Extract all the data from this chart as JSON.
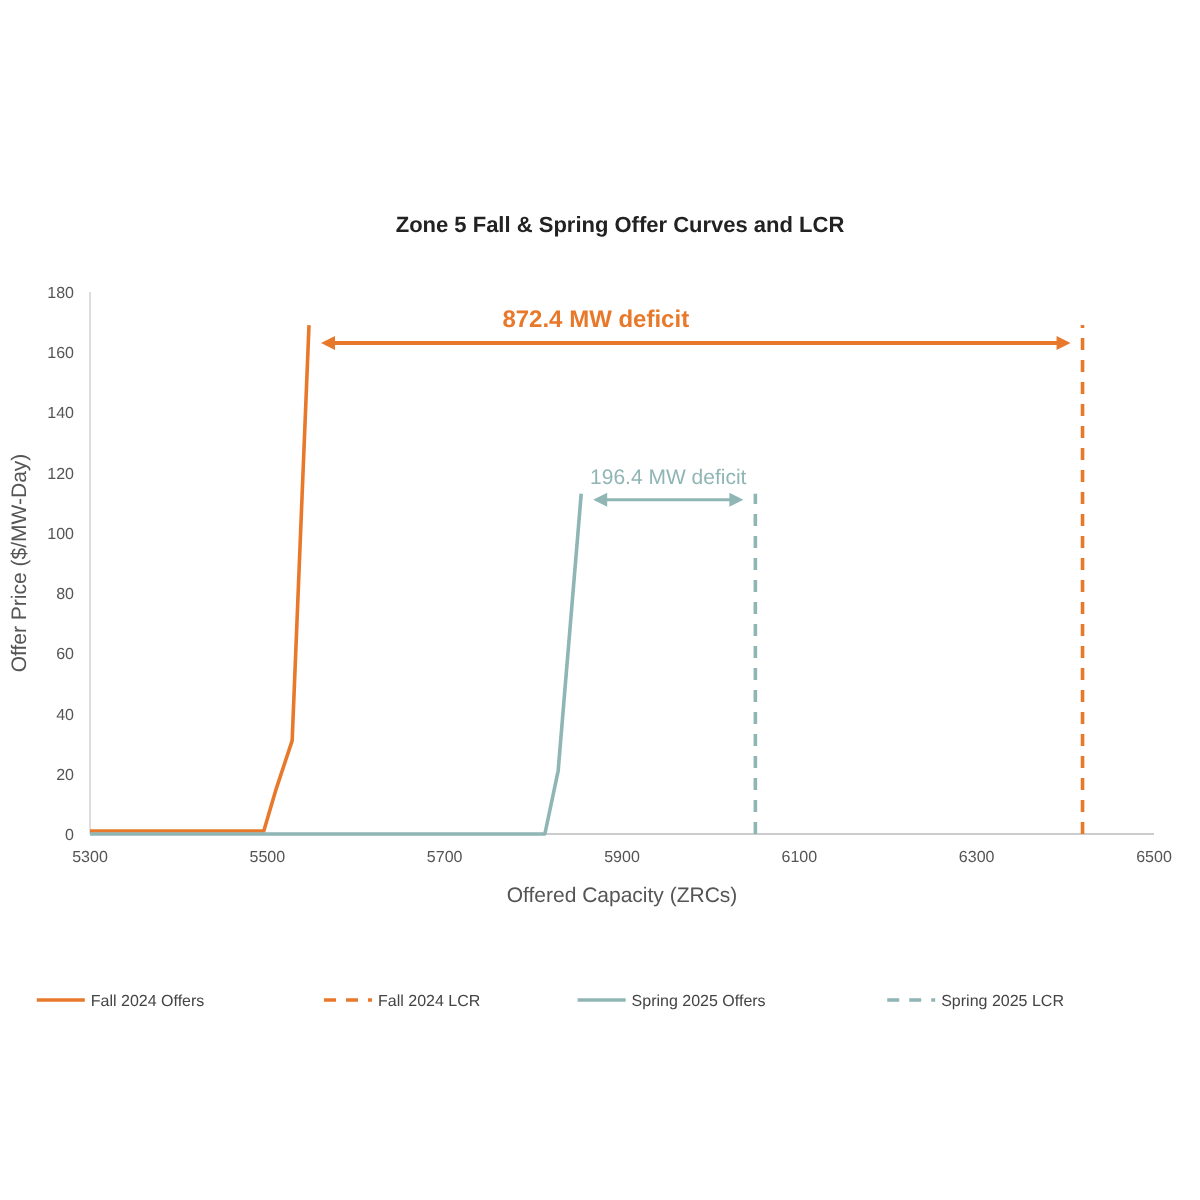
{
  "chart_data": {
    "type": "line",
    "title": "Zone 5 Fall & Spring Offer Curves and LCR",
    "xlabel": "Offered Capacity (ZRCs)",
    "ylabel": "Offer Price ($/MW-Day)",
    "xlim": [
      5300,
      6500
    ],
    "xticks": [
      5300,
      5500,
      5700,
      5900,
      6100,
      6300,
      6500
    ],
    "ylim": [
      0,
      180
    ],
    "yticks": [
      0,
      20,
      40,
      60,
      80,
      100,
      120,
      140,
      160,
      180
    ],
    "grid": false,
    "legend": "bottom",
    "series": [
      {
        "name": "Fall 2024 Offers",
        "color": "#e8792b",
        "line_style": "solid",
        "x": [
          5300,
          5496,
          5510,
          5528,
          5547
        ],
        "values": [
          1,
          1,
          15,
          31,
          169
        ]
      },
      {
        "name": "Fall 2024 LCR",
        "color": "#e8792b",
        "line_style": "dashed",
        "x": [
          6419.4,
          6419.4
        ],
        "values": [
          0,
          169
        ]
      },
      {
        "name": "Spring 2025 Offers",
        "color": "#8fb5b5",
        "line_style": "solid",
        "x": [
          5300,
          5813,
          5828,
          5854
        ],
        "values": [
          0,
          0,
          21,
          113
        ]
      },
      {
        "name": "Spring 2025 LCR",
        "color": "#8fb5b5",
        "line_style": "dashed",
        "x": [
          6050.4,
          6050.4
        ],
        "values": [
          0,
          113
        ]
      }
    ],
    "annotations": [
      "872.4 MW deficit",
      "196.4 MW deficit"
    ]
  }
}
